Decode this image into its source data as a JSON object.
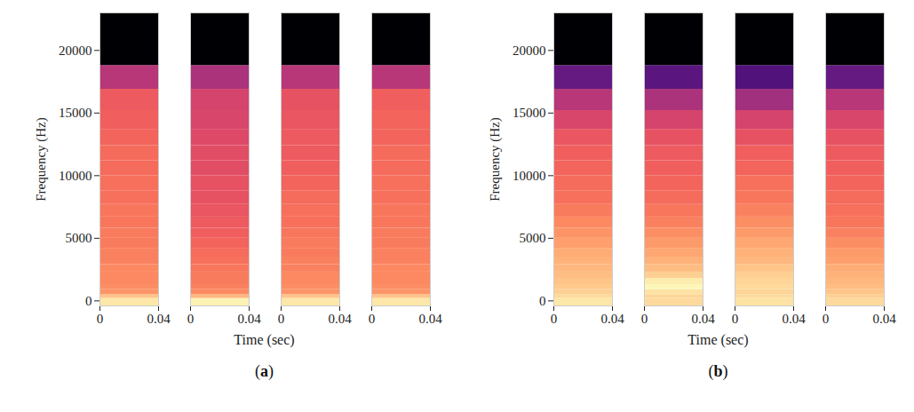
{
  "chart_data": [
    {
      "type": "heatmap",
      "title": "(a)",
      "xlabel": "Time (sec)",
      "ylabel": "Frequency (Hz)",
      "xlim": [
        0,
        0.04
      ],
      "xticks": [
        0,
        0.04
      ],
      "ylim": [
        -400,
        23000
      ],
      "yticks": [
        0,
        5000,
        10000,
        15000,
        20000
      ],
      "color": "magma",
      "color_range": [
        -80,
        0
      ],
      "frequency_edges": [
        -400,
        200,
        500,
        900,
        1300,
        1800,
        2300,
        2900,
        3500,
        4200,
        5000,
        5800,
        6700,
        7700,
        8800,
        10000,
        11200,
        12400,
        13700,
        15200,
        16900,
        18800,
        23000
      ],
      "cells": [
        [
          -4,
          -10,
          -18,
          -19,
          -20,
          -20,
          -20,
          -21,
          -21,
          -22,
          -22,
          -23,
          -23,
          -24,
          -24,
          -25,
          -25,
          -26,
          -27,
          -28,
          -40,
          -80
        ],
        [
          -2,
          -12,
          -20,
          -21,
          -22,
          -22,
          -23,
          -24,
          -25,
          -26,
          -27,
          -28,
          -29,
          -30,
          -30,
          -31,
          -31,
          -32,
          -33,
          -34,
          -42,
          -80
        ],
        [
          -4,
          -10,
          -18,
          -19,
          -20,
          -20,
          -21,
          -21,
          -22,
          -22,
          -23,
          -24,
          -24,
          -25,
          -26,
          -27,
          -28,
          -28,
          -29,
          -30,
          -40,
          -80
        ],
        [
          -4,
          -10,
          -18,
          -19,
          -20,
          -20,
          -20,
          -21,
          -21,
          -22,
          -22,
          -23,
          -23,
          -24,
          -24,
          -25,
          -25,
          -26,
          -26,
          -27,
          -40,
          -80
        ]
      ]
    },
    {
      "type": "heatmap",
      "title": "(b)",
      "xlabel": "Time (sec)",
      "ylabel": "Frequency (Hz)",
      "xlim": [
        0,
        0.04
      ],
      "xticks": [
        0,
        0.04
      ],
      "ylim": [
        -400,
        23000
      ],
      "yticks": [
        0,
        5000,
        10000,
        15000,
        20000
      ],
      "color": "magma",
      "color_range": [
        -80,
        0
      ],
      "frequency_edges": [
        -400,
        200,
        500,
        900,
        1300,
        1800,
        2300,
        2900,
        3500,
        4200,
        5000,
        5800,
        6700,
        7700,
        8800,
        10000,
        11200,
        12400,
        13700,
        15200,
        16900,
        18800,
        23000
      ],
      "cells": [
        [
          -4,
          -6,
          -8,
          -9,
          -10,
          -11,
          -12,
          -13,
          -14,
          -16,
          -18,
          -20,
          -22,
          -24,
          -25,
          -26,
          -27,
          -29,
          -33,
          -40,
          -56,
          -80
        ],
        [
          -6,
          -7,
          -5,
          -1,
          -3,
          -8,
          -11,
          -13,
          -15,
          -17,
          -19,
          -21,
          -23,
          -25,
          -26,
          -27,
          -28,
          -30,
          -34,
          -42,
          -58,
          -80
        ],
        [
          -5,
          -6,
          -7,
          -6,
          -7,
          -8,
          -10,
          -12,
          -13,
          -15,
          -17,
          -19,
          -21,
          -23,
          -24,
          -26,
          -27,
          -30,
          -34,
          -44,
          -60,
          -80
        ],
        [
          -6,
          -8,
          -10,
          -11,
          -12,
          -13,
          -14,
          -16,
          -17,
          -19,
          -21,
          -23,
          -24,
          -25,
          -26,
          -27,
          -28,
          -30,
          -33,
          -40,
          -56,
          -80
        ]
      ]
    }
  ]
}
